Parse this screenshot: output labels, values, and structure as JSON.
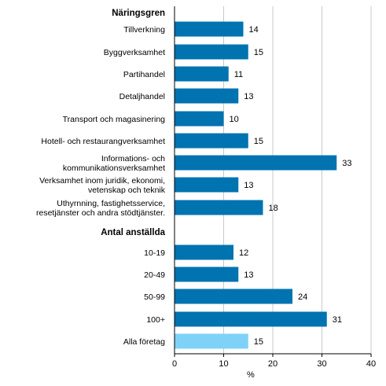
{
  "chart_data": {
    "type": "bar",
    "orientation": "horizontal",
    "xlabel": "%",
    "xlim": [
      0,
      40
    ],
    "xticks": [
      0,
      10,
      20,
      30,
      40
    ],
    "grid": true,
    "colors": {
      "default": "#0073b0",
      "highlight": "#7fd2f7"
    },
    "groups": [
      {
        "title": "Näringsgren",
        "items": [
          {
            "label": [
              "Tillverkning"
            ],
            "value": 14
          },
          {
            "label": [
              "Byggverksamhet"
            ],
            "value": 15
          },
          {
            "label": [
              "Partihandel"
            ],
            "value": 11
          },
          {
            "label": [
              "Detaljhandel"
            ],
            "value": 13
          },
          {
            "label": [
              "Transport och magasinering"
            ],
            "value": 10
          },
          {
            "label": [
              "Hotell- och restaurangverksamhet"
            ],
            "value": 15
          },
          {
            "label": [
              "Informations- och",
              "kommunikationsverksamhet"
            ],
            "value": 33
          },
          {
            "label": [
              "Verksamhet inom juridik, ekonomi,",
              "vetenskap och teknik"
            ],
            "value": 13
          },
          {
            "label": [
              "Uthyrnning, fastighetsservice,",
              "resetjänster och andra stödtjänster."
            ],
            "value": 18
          }
        ]
      },
      {
        "title": "Antal anställda",
        "items": [
          {
            "label": [
              "10-19"
            ],
            "value": 12
          },
          {
            "label": [
              "20-49"
            ],
            "value": 13
          },
          {
            "label": [
              "50-99"
            ],
            "value": 24
          },
          {
            "label": [
              "100+"
            ],
            "value": 31
          },
          {
            "label": [
              "Alla företag"
            ],
            "value": 15,
            "highlight": true
          }
        ]
      }
    ]
  }
}
